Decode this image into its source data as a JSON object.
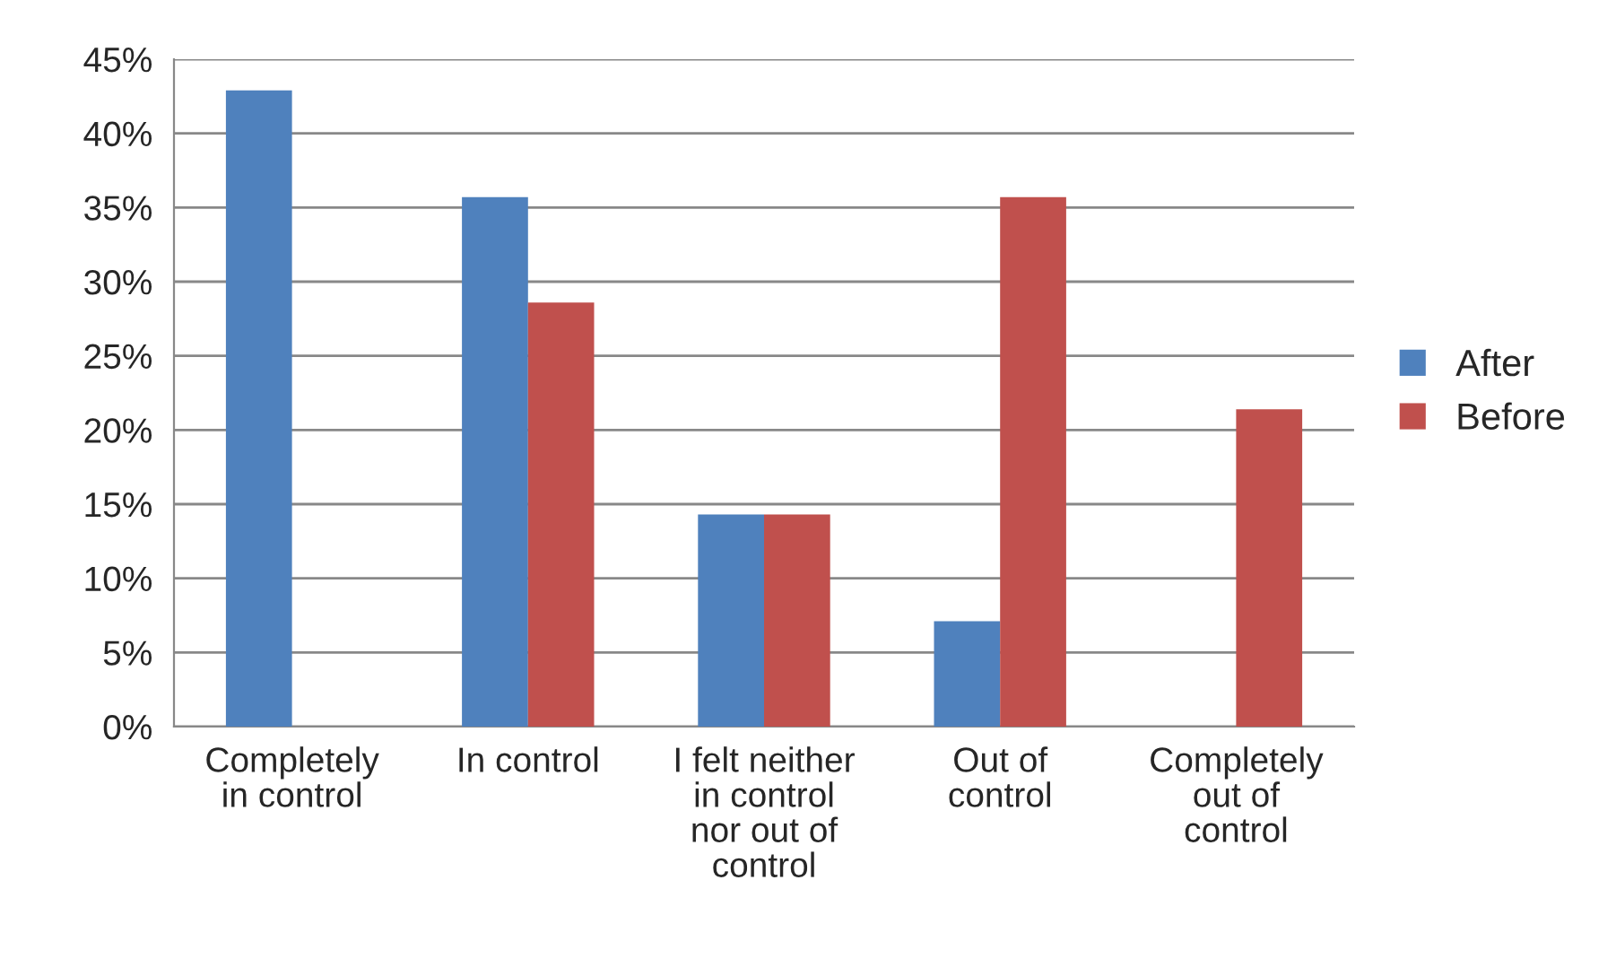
{
  "chart_data": {
    "type": "bar",
    "categories": [
      "Completely\nin control",
      "In control",
      "I felt neither\nin control\nnor out of\ncontrol",
      "Out of\ncontrol",
      "Completely\nout of\ncontrol"
    ],
    "series": [
      {
        "name": "After",
        "color": "#4f81bd",
        "values": [
          42.9,
          35.7,
          14.3,
          7.1,
          null
        ]
      },
      {
        "name": "Before",
        "color": "#c0504d",
        "values": [
          null,
          28.6,
          14.3,
          35.7,
          21.4
        ]
      }
    ],
    "ylim": [
      0,
      45
    ],
    "yticks": [
      {
        "value": 0,
        "label": "0%"
      },
      {
        "value": 5,
        "label": "5%"
      },
      {
        "value": 10,
        "label": "10%"
      },
      {
        "value": 15,
        "label": "15%"
      },
      {
        "value": 20,
        "label": "20%"
      },
      {
        "value": 25,
        "label": "25%"
      },
      {
        "value": 30,
        "label": "30%"
      },
      {
        "value": 35,
        "label": "35%"
      },
      {
        "value": 40,
        "label": "40%"
      },
      {
        "value": 45,
        "label": "45%"
      }
    ],
    "grid": "y",
    "legend": "right"
  }
}
